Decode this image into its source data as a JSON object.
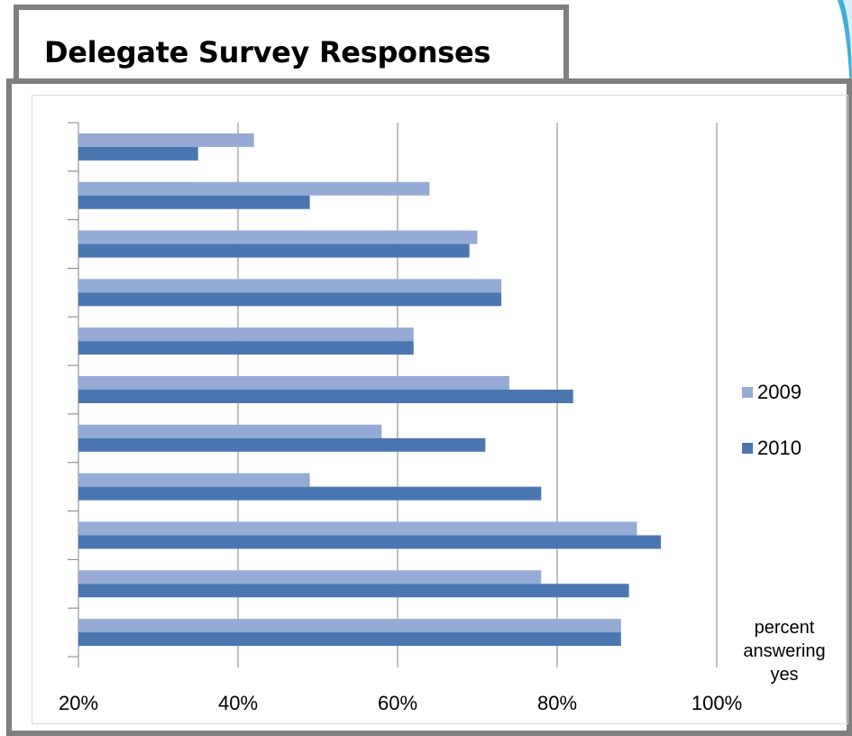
{
  "title": "Delegate Survey Responses",
  "colors": {
    "series_2009": "#95abd6",
    "series_2010": "#4a76b1",
    "frame": "#7f7f7f",
    "gridline": "#808080",
    "accent_swoosh": "#1ea0d6"
  },
  "chart_data": {
    "type": "bar",
    "orientation": "horizontal",
    "title": "Delegate Survey Responses",
    "xlabel": "percent answering yes",
    "ylabel": "",
    "xlim": [
      20,
      100
    ],
    "x_ticks": [
      "20%",
      "40%",
      "60%",
      "80%",
      "100%"
    ],
    "grid": true,
    "legend_position": "right",
    "categories": [
      "",
      "",
      "",
      "",
      "",
      "",
      "",
      "",
      "",
      "",
      ""
    ],
    "series": [
      {
        "name": "2009",
        "values": [
          42,
          64,
          70,
          73,
          62,
          74,
          58,
          49,
          90,
          78,
          88
        ]
      },
      {
        "name": "2010",
        "values": [
          35,
          49,
          69,
          73,
          62,
          82,
          71,
          78,
          93,
          89,
          88
        ]
      }
    ]
  },
  "legend": {
    "items": [
      {
        "label": "2009"
      },
      {
        "label": "2010"
      }
    ]
  },
  "axis_note": {
    "line1": "percent",
    "line2": "answering",
    "line3": "yes"
  }
}
